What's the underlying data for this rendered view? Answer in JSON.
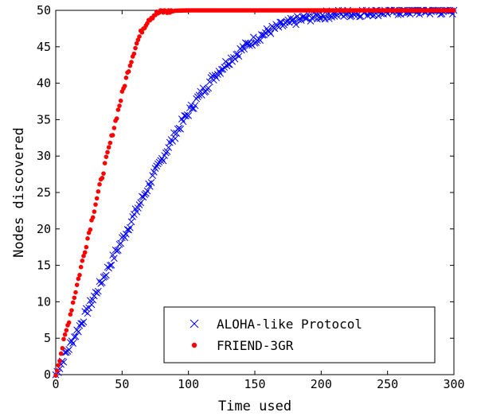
{
  "chart_data": {
    "type": "scatter",
    "xlabel": "Time used",
    "ylabel": "Nodes discovered",
    "xlim": [
      0,
      300
    ],
    "ylim": [
      0,
      50
    ],
    "xticks": [
      0,
      50,
      100,
      150,
      200,
      250,
      300
    ],
    "yticks": [
      0,
      5,
      10,
      15,
      20,
      25,
      30,
      35,
      40,
      45,
      50
    ],
    "legend_position": "bottom-right",
    "grid": false,
    "series": [
      {
        "name": "ALOHA-like Protocol",
        "marker": "x",
        "color": "#0000ff",
        "x": [
          0,
          10,
          20,
          30,
          40,
          50,
          60,
          70,
          80,
          90,
          100,
          110,
          120,
          130,
          140,
          150,
          160,
          170,
          180,
          190,
          200,
          210,
          220,
          230,
          240,
          250,
          260,
          270,
          280,
          290,
          300
        ],
        "y": [
          0,
          3.7,
          7.4,
          11.1,
          14.8,
          18.5,
          22.2,
          25.9,
          29.6,
          33,
          36,
          38.7,
          41.1,
          43,
          44.6,
          46,
          47.1,
          47.9,
          48.5,
          49,
          49.3,
          49.5,
          49.6,
          49.7,
          49.8,
          49.85,
          49.9,
          49.9,
          49.95,
          49.95,
          50
        ]
      },
      {
        "name": "FRIEND-3GR",
        "marker": "dot",
        "color": "#ff0000",
        "x": [
          0,
          10,
          20,
          30,
          40,
          50,
          55,
          60,
          65,
          70,
          75,
          80,
          90,
          100,
          120,
          150,
          200,
          250,
          300
        ],
        "y": [
          0,
          7.5,
          15.5,
          23.5,
          31,
          38.5,
          42,
          45,
          47.3,
          48.8,
          49.5,
          49.8,
          49.95,
          50,
          50,
          50,
          50,
          50,
          50
        ]
      }
    ]
  }
}
